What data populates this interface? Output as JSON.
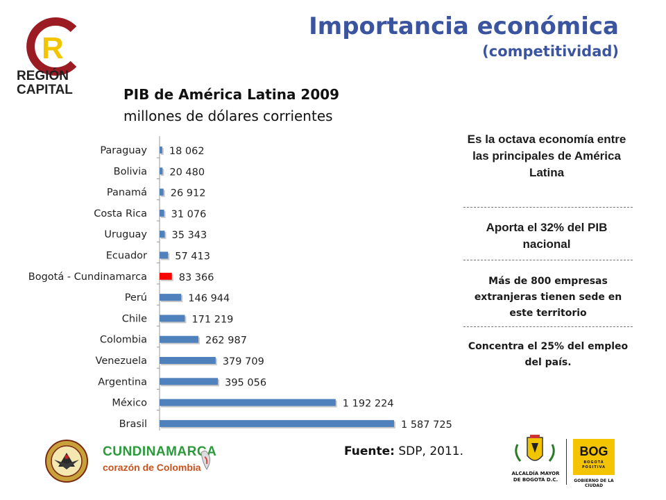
{
  "header": {
    "title": "Importancia económica",
    "subtitle": "(competitividad)"
  },
  "logos": {
    "region_capital_letter": "R",
    "region_capital_line1": "REGIÓN",
    "region_capital_line2": "CAPITAL",
    "cundinamarca_name": "CUNDINAMARCA",
    "cundinamarca_slogan": "corazón de Colombia",
    "alcaldia_line1": "ALCALDÍA MAYOR",
    "alcaldia_line2": "DE BOGOTÁ D.C.",
    "bogota_positiva_word": "BOG",
    "bogota_positiva_sub1": "BOGOTÁ",
    "bogota_positiva_sub2": "POSITIVA",
    "gobierno_text": "GOBIERNO DE LA CIUDAD"
  },
  "chart_data": {
    "type": "bar",
    "orientation": "horizontal",
    "title": "PIB de América Latina 2009",
    "subtitle": "millones de dólares corrientes",
    "categories": [
      "Paraguay",
      "Bolivia",
      "Panamá",
      "Costa Rica",
      "Uruguay",
      "Ecuador",
      "Bogotá - Cundinamarca",
      "Perú",
      "Chile",
      "Colombia",
      "Venezuela",
      "Argentina",
      "México",
      "Brasil"
    ],
    "values": [
      18062,
      20480,
      26912,
      31076,
      35343,
      57413,
      83366,
      146944,
      171219,
      262987,
      379709,
      395056,
      1192224,
      1587725
    ],
    "value_labels": [
      "18 062",
      "20 480",
      "26 912",
      "31 076",
      "35 343",
      "57 413",
      "83 366",
      "146 944",
      "171 219",
      "262 987",
      "379 709",
      "395 056",
      "1 192 224",
      "1 587 725"
    ],
    "highlight_category": "Bogotá - Cundinamarca",
    "colors": {
      "default": "#4f81bd",
      "highlight": "#ff0000"
    },
    "grid": false,
    "legend": "none"
  },
  "info": {
    "box1": "Es la octava economía entre las principales de América Latina",
    "box2": "Aporta el 32% del PIB nacional",
    "box3": "Más de 800 empresas extranjeras tienen sede en este territorio",
    "box4": "Concentra el 25% del empleo del país."
  },
  "source": {
    "label": "Fuente:",
    "text": "SDP, 2011."
  }
}
